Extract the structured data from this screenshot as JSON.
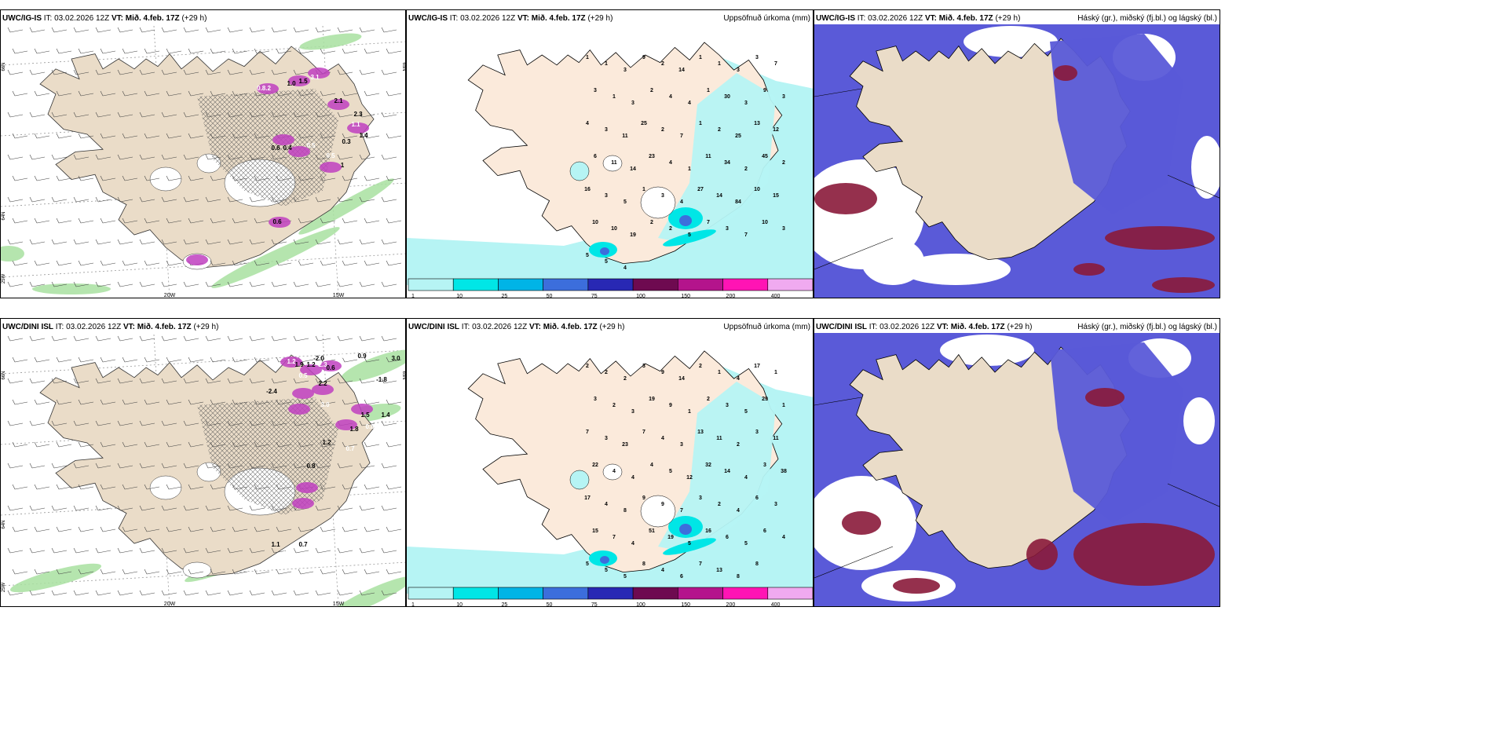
{
  "rows": [
    {
      "model": "UWC/IG-IS",
      "init_prefix": "IT:",
      "init_time": "03.02.2026 12Z",
      "valid_prefix": "VT:",
      "valid_time": "Mið. 4.feb. 17Z",
      "lead": "(+29 h)"
    },
    {
      "model": "UWC/DINI ISL",
      "init_prefix": "IT:",
      "init_time": "03.02.2026 12Z",
      "valid_prefix": "VT:",
      "valid_time": "Mið. 4.feb. 17Z",
      "lead": "(+29 h)"
    }
  ],
  "precip_title": "Uppsöfnuð úrkoma (mm)",
  "cloud_title": "Háský (gr.), miðský (fj.bl.) og lágský (bl.)",
  "colorbar": {
    "labels": [
      "1",
      "10",
      "25",
      "50",
      "75",
      "100",
      "150",
      "200",
      "400"
    ],
    "colors": [
      "#b6f4f4",
      "#00e6e6",
      "#00b4e6",
      "#3c6edc",
      "#2828b4",
      "#6e0a50",
      "#b4148c",
      "#ff14b4",
      "#f0aaf0"
    ]
  },
  "wind_axes": {
    "lon_labels": [
      "20W",
      "15W"
    ],
    "lat_labels": [
      "66N",
      "64N",
      "25W",
      "65N"
    ]
  },
  "top_wind_values": [
    "0.8.2",
    "1.0",
    "1.5",
    "3.1",
    "2.1",
    "2.3",
    "1.1",
    "1.4",
    "0.3",
    "0.5",
    "0.6",
    "0.4",
    "0.5",
    "1",
    "0.6",
    "2.3"
  ],
  "bottom_wind_values": [
    "1.2",
    "1.9",
    "1.2",
    "2.3",
    "0.6",
    "-2.0",
    "1.4",
    "0.9",
    "3.0",
    "0.5",
    "-2.4",
    "2.2",
    "3.0",
    "-1.8",
    "1.5",
    "0.8",
    "1.4",
    "1.8",
    "0.7",
    "1.2",
    "0.8",
    "-2.2",
    "1.1",
    "0.7",
    "-0.3"
  ],
  "top_precip_values": [
    "1",
    "1",
    "3",
    "9",
    "2",
    "14",
    "1",
    "1",
    "3",
    "3",
    "7",
    "3",
    "1",
    "3",
    "2",
    "4",
    "4",
    "1",
    "30",
    "3",
    "9",
    "3",
    "4",
    "3",
    "11",
    "25",
    "2",
    "7",
    "1",
    "2",
    "25",
    "13",
    "12",
    "6",
    "11",
    "14",
    "23",
    "4",
    "1",
    "11",
    "34",
    "2",
    "45",
    "2",
    "16",
    "3",
    "5",
    "1",
    "3",
    "4",
    "27",
    "14",
    "84",
    "10",
    "15",
    "10",
    "10",
    "19",
    "2",
    "2",
    "5",
    "7",
    "3",
    "7",
    "10",
    "3",
    "5",
    "5",
    "4"
  ],
  "bottom_precip_values": [
    "2",
    "2",
    "2",
    "3",
    "9",
    "14",
    "2",
    "1",
    "4",
    "17",
    "1",
    "3",
    "2",
    "3",
    "19",
    "9",
    "1",
    "2",
    "3",
    "5",
    "29",
    "1",
    "7",
    "3",
    "23",
    "7",
    "4",
    "3",
    "13",
    "11",
    "2",
    "3",
    "11",
    "22",
    "4",
    "4",
    "4",
    "5",
    "12",
    "32",
    "14",
    "4",
    "3",
    "38",
    "17",
    "4",
    "8",
    "9",
    "9",
    "7",
    "3",
    "2",
    "4",
    "6",
    "3",
    "15",
    "7",
    "4",
    "51",
    "19",
    "5",
    "16",
    "6",
    "5",
    "6",
    "4",
    "5",
    "5",
    "5",
    "8",
    "4",
    "6",
    "7",
    "13",
    "8",
    "8"
  ]
}
